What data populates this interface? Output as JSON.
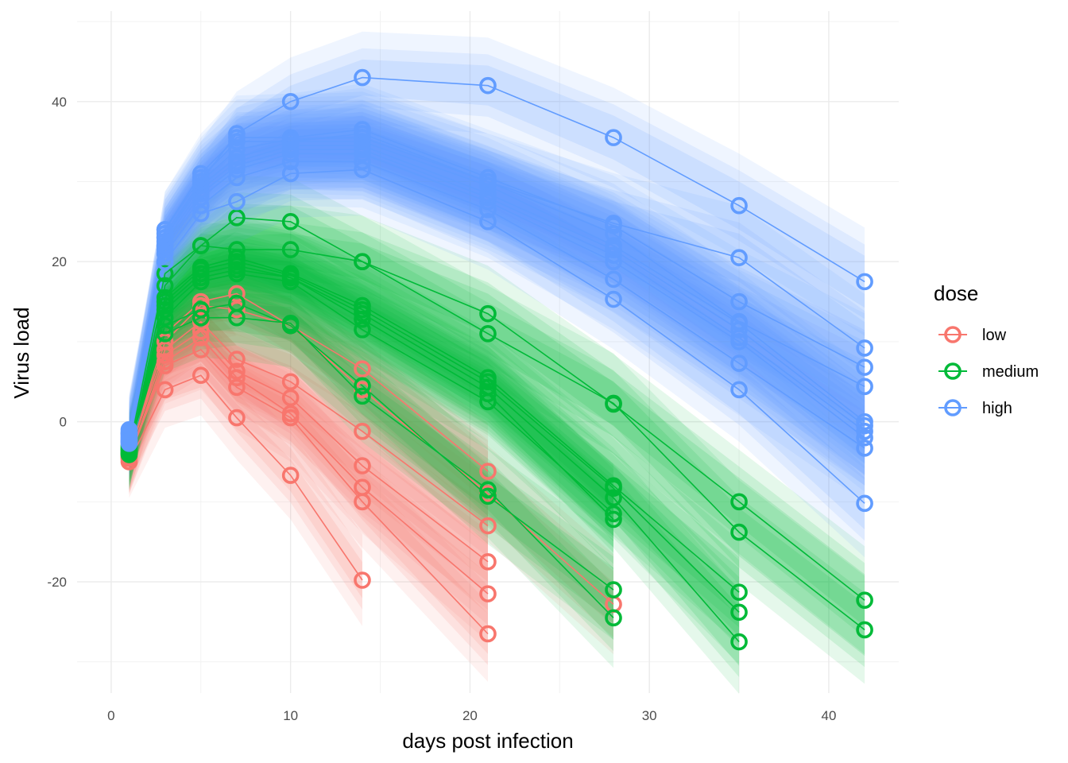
{
  "chart_data": {
    "type": "line",
    "xlabel": "days post infection",
    "ylabel": "Virus load",
    "xlim": [
      -1.9,
      43.9
    ],
    "ylim": [
      -33.9,
      51.3
    ],
    "x_ticks": [
      0,
      10,
      20,
      30,
      40
    ],
    "y_ticks": [
      -20,
      0,
      20,
      40
    ],
    "grid": true,
    "legend": {
      "title": "dose",
      "position": "right",
      "entries": [
        "low",
        "medium",
        "high"
      ]
    },
    "colors": {
      "low": "#F8766D",
      "medium": "#00BA38",
      "high": "#619CFF"
    },
    "series": [
      {
        "group": "low",
        "x": [
          1,
          3,
          5,
          7,
          10,
          14
        ],
        "y": [
          -5.0,
          4.0,
          5.8,
          0.5,
          -6.7,
          -19.8
        ]
      },
      {
        "group": "low",
        "x": [
          1,
          3,
          5,
          7,
          10,
          14,
          21
        ],
        "y": [
          -4.5,
          7.0,
          9.0,
          4.3,
          0.5,
          -10.0,
          -26.5
        ]
      },
      {
        "group": "low",
        "x": [
          1,
          3,
          5,
          7,
          10,
          14,
          21
        ],
        "y": [
          -4.3,
          7.5,
          10.5,
          5.5,
          1.0,
          -8.2,
          -21.5
        ]
      },
      {
        "group": "low",
        "x": [
          1,
          3,
          5,
          7,
          10,
          14,
          21
        ],
        "y": [
          -4.6,
          8.3,
          11.3,
          6.3,
          3.0,
          -5.5,
          -17.5
        ]
      },
      {
        "group": "low",
        "x": [
          1,
          3,
          5,
          7,
          10,
          14,
          21
        ],
        "y": [
          -4.0,
          9.0,
          12.5,
          7.8,
          5.0,
          -1.2,
          -13.0
        ]
      },
      {
        "group": "low",
        "x": [
          1,
          3,
          5,
          7,
          10,
          14,
          21
        ],
        "y": [
          -4.2,
          10.0,
          14.5,
          14.0,
          12.0,
          6.6,
          -6.2
        ]
      },
      {
        "group": "low",
        "x": [
          1,
          3,
          5,
          7,
          10,
          14,
          21,
          28
        ],
        "y": [
          -4.4,
          11.0,
          15.0,
          16.0,
          12.0,
          4.0,
          -9.0,
          -22.8
        ]
      },
      {
        "group": "medium",
        "x": [
          1,
          3,
          5,
          7,
          10,
          14,
          21,
          28
        ],
        "y": [
          -3.0,
          11.0,
          13.0,
          13.0,
          12.3,
          3.2,
          -8.5,
          -24.5
        ]
      },
      {
        "group": "medium",
        "x": [
          1,
          3,
          5,
          7,
          10,
          14,
          21,
          28
        ],
        "y": [
          -3.2,
          12.0,
          14.0,
          14.8,
          12.0,
          4.5,
          -9.3,
          -21.0
        ]
      },
      {
        "group": "medium",
        "x": [
          1,
          3,
          5,
          7,
          10,
          14,
          21,
          28
        ],
        "y": [
          -3.4,
          13.0,
          17.5,
          18.5,
          17.5,
          11.5,
          2.5,
          -11.5
        ]
      },
      {
        "group": "medium",
        "x": [
          1,
          3,
          5,
          7,
          10,
          14,
          21,
          28
        ],
        "y": [
          -3.6,
          14.0,
          18.0,
          19.0,
          18.0,
          12.8,
          3.5,
          -12.2
        ]
      },
      {
        "group": "medium",
        "x": [
          1,
          3,
          5,
          7,
          10,
          14,
          21,
          28,
          35
        ],
        "y": [
          -3.8,
          14.5,
          18.5,
          19.5,
          18.0,
          13.5,
          4.3,
          -9.5,
          -27.5
        ]
      },
      {
        "group": "medium",
        "x": [
          1,
          3,
          5,
          7,
          10,
          14,
          21,
          28,
          35
        ],
        "y": [
          -4.0,
          15.0,
          19.0,
          20.0,
          18.3,
          14.0,
          5.0,
          -8.3,
          -23.8
        ]
      },
      {
        "group": "medium",
        "x": [
          1,
          3,
          5,
          7,
          10,
          14,
          21,
          28,
          35
        ],
        "y": [
          -3.9,
          15.5,
          19.3,
          20.5,
          18.5,
          14.5,
          5.5,
          -8.0,
          -21.3
        ]
      },
      {
        "group": "medium",
        "x": [
          1,
          3,
          5,
          7,
          10,
          14,
          21,
          28,
          35,
          42
        ],
        "y": [
          -4.1,
          17.0,
          22.0,
          21.5,
          21.5,
          20.0,
          11.0,
          2.3,
          -13.8,
          -26.0
        ]
      },
      {
        "group": "medium",
        "x": [
          1,
          3,
          5,
          7,
          10,
          14,
          21,
          28,
          35,
          42
        ],
        "y": [
          -3.5,
          18.5,
          22.0,
          25.5,
          25.0,
          20.0,
          13.5,
          2.2,
          -10.0,
          -22.3
        ]
      },
      {
        "group": "high",
        "x": [
          1,
          3,
          5,
          7,
          10,
          14,
          21,
          28,
          35,
          42
        ],
        "y": [
          -2.5,
          20.0,
          26.0,
          27.5,
          31.0,
          31.5,
          25.0,
          15.3,
          4.0,
          -10.2
        ]
      },
      {
        "group": "high",
        "x": [
          1,
          3,
          5,
          7,
          10,
          14,
          21,
          28,
          35,
          42
        ],
        "y": [
          -2.0,
          21.0,
          27.0,
          30.5,
          32.5,
          32.5,
          26.5,
          17.8,
          7.3,
          -3.3
        ]
      },
      {
        "group": "high",
        "x": [
          1,
          3,
          5,
          7,
          10,
          14,
          21,
          28,
          35,
          42
        ],
        "y": [
          -1.5,
          21.5,
          28.0,
          31.5,
          33.5,
          33.5,
          27.5,
          20.0,
          10.0,
          -2.0
        ]
      },
      {
        "group": "high",
        "x": [
          1,
          3,
          5,
          7,
          10,
          14,
          21,
          28,
          35,
          42
        ],
        "y": [
          -1.0,
          22.0,
          28.5,
          32.0,
          34.0,
          34.0,
          28.0,
          20.8,
          10.5,
          -1.2
        ]
      },
      {
        "group": "high",
        "x": [
          1,
          3,
          5,
          7,
          10,
          14,
          21,
          28,
          35,
          42
        ],
        "y": [
          -1.8,
          22.5,
          29.0,
          32.5,
          34.5,
          34.5,
          28.5,
          21.5,
          11.5,
          -0.5
        ]
      },
      {
        "group": "high",
        "x": [
          1,
          3,
          5,
          7,
          10,
          14,
          21,
          28,
          35,
          42
        ],
        "y": [
          -2.2,
          23.0,
          29.5,
          33.0,
          35.0,
          35.0,
          29.5,
          22.0,
          12.3,
          0.0
        ]
      },
      {
        "group": "high",
        "x": [
          1,
          3,
          5,
          7,
          10,
          14,
          21,
          28,
          35,
          42
        ],
        "y": [
          -1.3,
          23.5,
          30.0,
          34.0,
          35.3,
          35.5,
          30.0,
          23.5,
          12.5,
          4.4
        ]
      },
      {
        "group": "high",
        "x": [
          1,
          3,
          5,
          7,
          10,
          14,
          21,
          28,
          35,
          42
        ],
        "y": [
          -2.7,
          24.0,
          31.0,
          35.5,
          35.5,
          36.5,
          30.5,
          24.5,
          15.0,
          6.8
        ]
      },
      {
        "group": "high",
        "x": [
          1,
          3,
          5,
          7,
          10,
          14,
          21,
          28,
          35,
          42
        ],
        "y": [
          -2.4,
          24.0,
          30.5,
          35.0,
          35.0,
          36.0,
          30.0,
          24.8,
          20.5,
          9.2
        ]
      },
      {
        "group": "high",
        "x": [
          1,
          3,
          5,
          7,
          10,
          14,
          21,
          28,
          35,
          42
        ],
        "y": [
          -1.5,
          23.0,
          30.0,
          36.0,
          40.0,
          43.0,
          42.0,
          35.5,
          27.0,
          17.5
        ]
      }
    ]
  }
}
